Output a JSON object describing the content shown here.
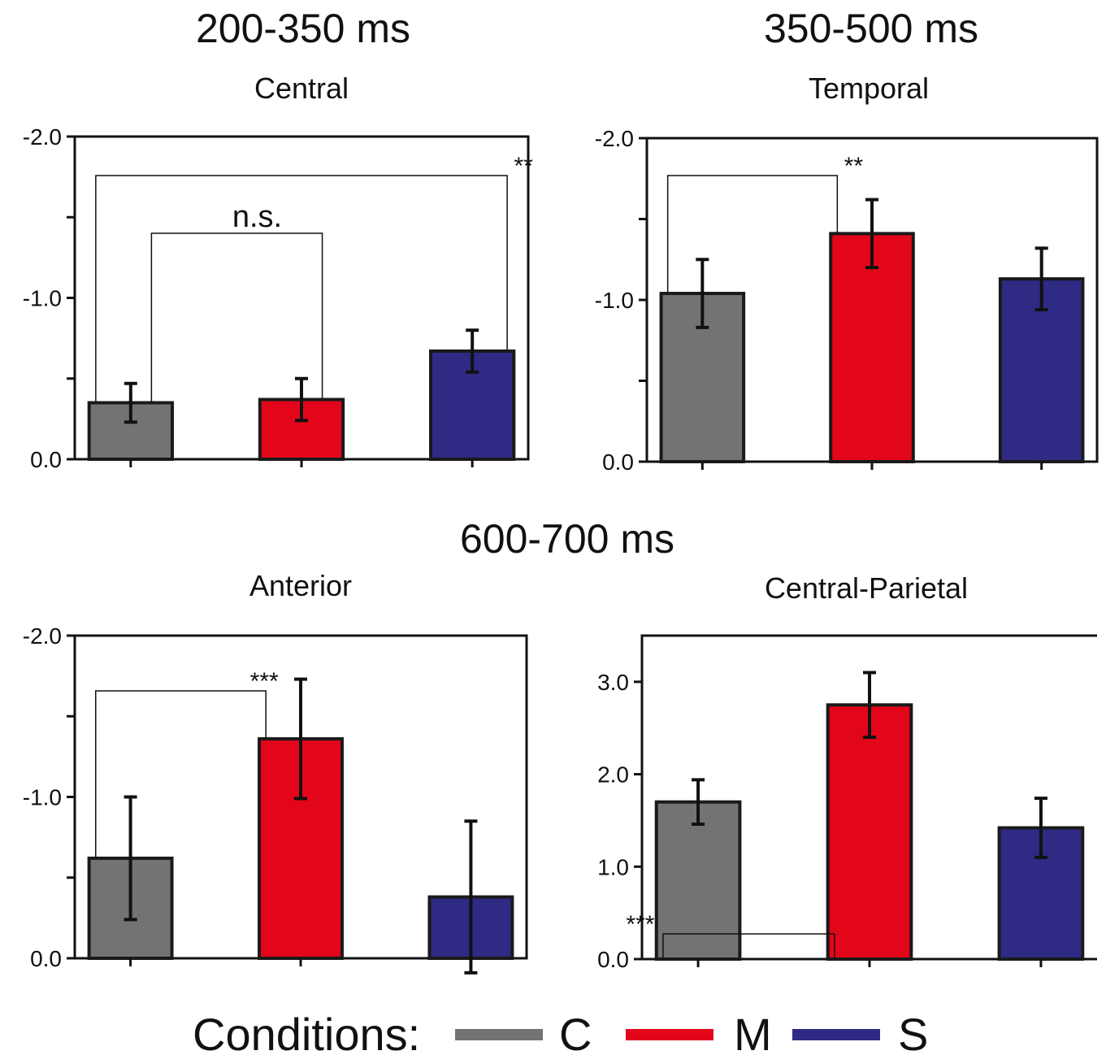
{
  "titles": {
    "window_1": "200-350 ms",
    "window_2": "350-500 ms",
    "window_3": "600-700 ms"
  },
  "colors": {
    "C": "#737373",
    "M": "#e3061a",
    "S": "#2f2a84"
  },
  "legend": {
    "title": "Conditions:",
    "items": [
      {
        "label": "C",
        "color": "#737373"
      },
      {
        "label": "M",
        "color": "#e3061a"
      },
      {
        "label": "S",
        "color": "#2f2a84"
      }
    ]
  },
  "chart_data": [
    {
      "type": "bar",
      "title": "Central",
      "time_window": "200-350 ms",
      "categories": [
        "C",
        "M",
        "S"
      ],
      "values": [
        -0.35,
        -0.37,
        -0.67
      ],
      "errors": [
        0.12,
        0.13,
        0.13
      ],
      "ylim": [
        0.0,
        -2.0
      ],
      "y_inverted": true,
      "yticks": [
        0.0,
        -1.0,
        -2.0
      ],
      "ytick_labels": [
        "0.0",
        "-1.0",
        "-2.0"
      ],
      "grid": false,
      "significance": [
        {
          "from": "C",
          "to": "S",
          "label": "**"
        },
        {
          "from": "C",
          "to": "M",
          "label": "n.s."
        }
      ]
    },
    {
      "type": "bar",
      "title": "Temporal",
      "time_window": "350-500 ms",
      "categories": [
        "C",
        "M",
        "S"
      ],
      "values": [
        -1.04,
        -1.41,
        -1.13
      ],
      "errors": [
        0.21,
        0.21,
        0.19
      ],
      "ylim": [
        0.0,
        -2.0
      ],
      "y_inverted": true,
      "yticks": [
        0.0,
        -1.0,
        -2.0
      ],
      "ytick_labels": [
        "0.0",
        "-1.0",
        "-2.0"
      ],
      "grid": false,
      "significance": [
        {
          "from": "C",
          "to": "M",
          "label": "**"
        }
      ]
    },
    {
      "type": "bar",
      "title": "Anterior",
      "time_window": "600-700 ms",
      "categories": [
        "C",
        "M",
        "S"
      ],
      "values": [
        -0.62,
        -1.36,
        -0.38
      ],
      "errors": [
        0.38,
        0.37,
        0.47
      ],
      "ylim": [
        0.0,
        -2.0
      ],
      "y_inverted": true,
      "yticks": [
        0.0,
        -1.0,
        -2.0
      ],
      "ytick_labels": [
        "0.0",
        "-1.0",
        "-2.0"
      ],
      "grid": false,
      "significance": [
        {
          "from": "C",
          "to": "M",
          "label": "***"
        }
      ]
    },
    {
      "type": "bar",
      "title": "Central-Parietal",
      "time_window": "600-700 ms",
      "categories": [
        "C",
        "M",
        "S"
      ],
      "values": [
        1.7,
        2.75,
        1.42
      ],
      "errors": [
        0.24,
        0.35,
        0.32
      ],
      "ylim": [
        0.0,
        3.5
      ],
      "y_inverted": true,
      "yticks": [
        0.0,
        1.0,
        2.0,
        3.0
      ],
      "ytick_labels": [
        "0.0",
        "1.0",
        "2.0",
        "3.0"
      ],
      "grid": false,
      "significance": [
        {
          "from": "C",
          "to": "M",
          "label": "***"
        }
      ]
    }
  ]
}
